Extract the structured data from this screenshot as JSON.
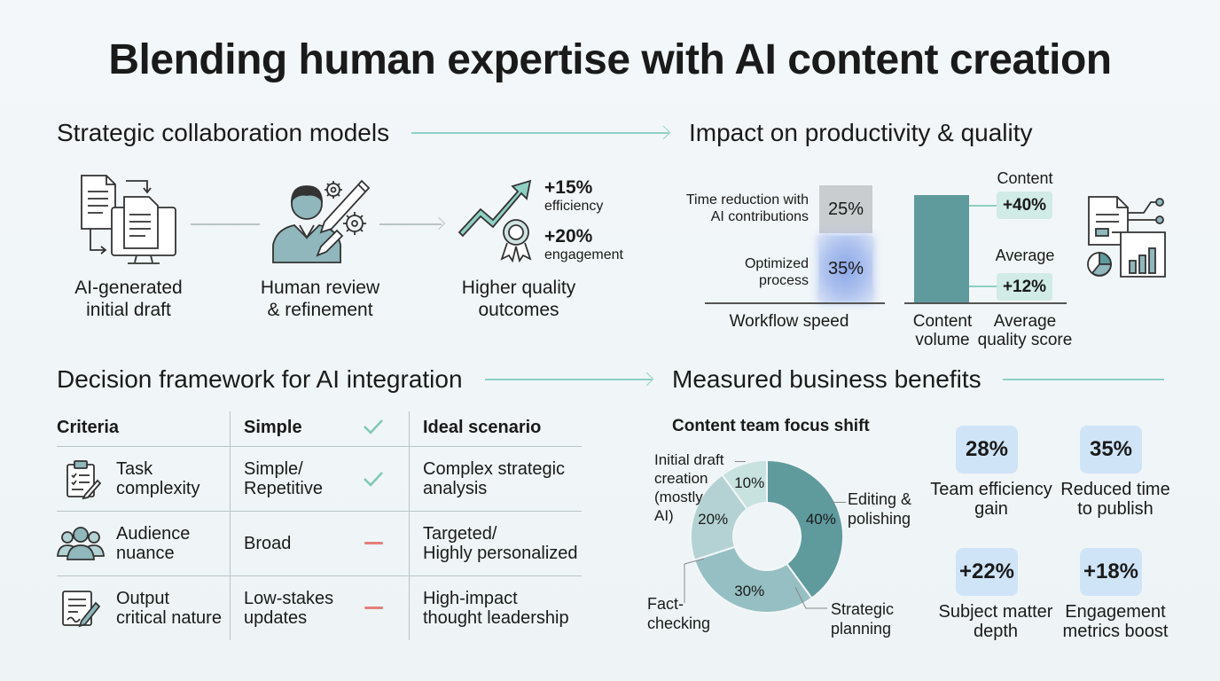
{
  "title": "Blending human expertise with AI content creation",
  "sections": {
    "collab": "Strategic collaboration models",
    "impact": "Impact on productivity & quality",
    "decision": "Decision framework for AI integration",
    "benefits": "Measured business benefits"
  },
  "collab_steps": [
    {
      "label": "AI-generated\ninitial draft"
    },
    {
      "label": "Human review\n& refinement"
    },
    {
      "label": "Higher quality\noutcomes"
    }
  ],
  "outcome_stats": [
    {
      "value": "+15%",
      "label": "efficiency"
    },
    {
      "value": "+20%",
      "label": "engagement"
    }
  ],
  "impact_chart": {
    "workflow": {
      "time_reduction_label": "Time reduction with\nAI contributions",
      "time_reduction_value": "25%",
      "optimized_label": "Optimized\nprocess",
      "optimized_value": "35%",
      "axis_label": "Workflow speed"
    },
    "content": {
      "content_top_label": "Content",
      "content_value": "+40%",
      "average_top_label": "Average",
      "average_value": "+12%",
      "axis_label_1": "Content\nvolume",
      "axis_label_2": "Average\nquality score"
    }
  },
  "decision_table": {
    "headers": {
      "criteria": "Criteria",
      "simple": "Simple",
      "ideal": "Ideal scenario"
    },
    "rows": [
      {
        "criteria": "Task\ncomplexity",
        "simple": "Simple/\nRepetitive",
        "mark": "check",
        "ideal": "Complex strategic\nanalysis",
        "icon": "clipboard-icon"
      },
      {
        "criteria": "Audience\nnuance",
        "simple": "Broad",
        "mark": "dash",
        "ideal": "Targeted/\nHighly personalized",
        "icon": "audience-icon"
      },
      {
        "criteria": "Output\ncritical nature",
        "simple": "Low-stakes\nupdates",
        "mark": "dash",
        "ideal": "High-impact\nthought leadership",
        "icon": "document-pen-icon"
      }
    ]
  },
  "chart_data": {
    "type": "pie",
    "title": "Content team focus shift",
    "slices": [
      {
        "label": "Editing &\npolishing",
        "value": 40,
        "display": "40%",
        "color": "#5f9a9d"
      },
      {
        "label": "Strategic\nplanning",
        "value": 30,
        "display": "30%",
        "color": "#96bfc3"
      },
      {
        "label": "Fact-\nchecking",
        "value": 20,
        "display": "20%",
        "color": "#b4d2d4"
      },
      {
        "label": "Initial draft\ncreation\n(mostly\nAI)",
        "value": 10,
        "display": "10%",
        "color": "#c8e3df"
      }
    ]
  },
  "kpis": [
    {
      "value": "28%",
      "label": "Team efficiency\ngain"
    },
    {
      "value": "35%",
      "label": "Reduced time\nto publish"
    },
    {
      "value": "+22%",
      "label": "Subject matter\ndepth"
    },
    {
      "value": "+18%",
      "label": "Engagement\nmetrics boost"
    }
  ],
  "colors": {
    "accent": "#8fcfc4",
    "bar": "#5f9a9d",
    "check": "#7fc9b3",
    "dash": "#e57f78",
    "highlight": "#6f93e0",
    "kpi_bg": "#cfe4f7"
  }
}
